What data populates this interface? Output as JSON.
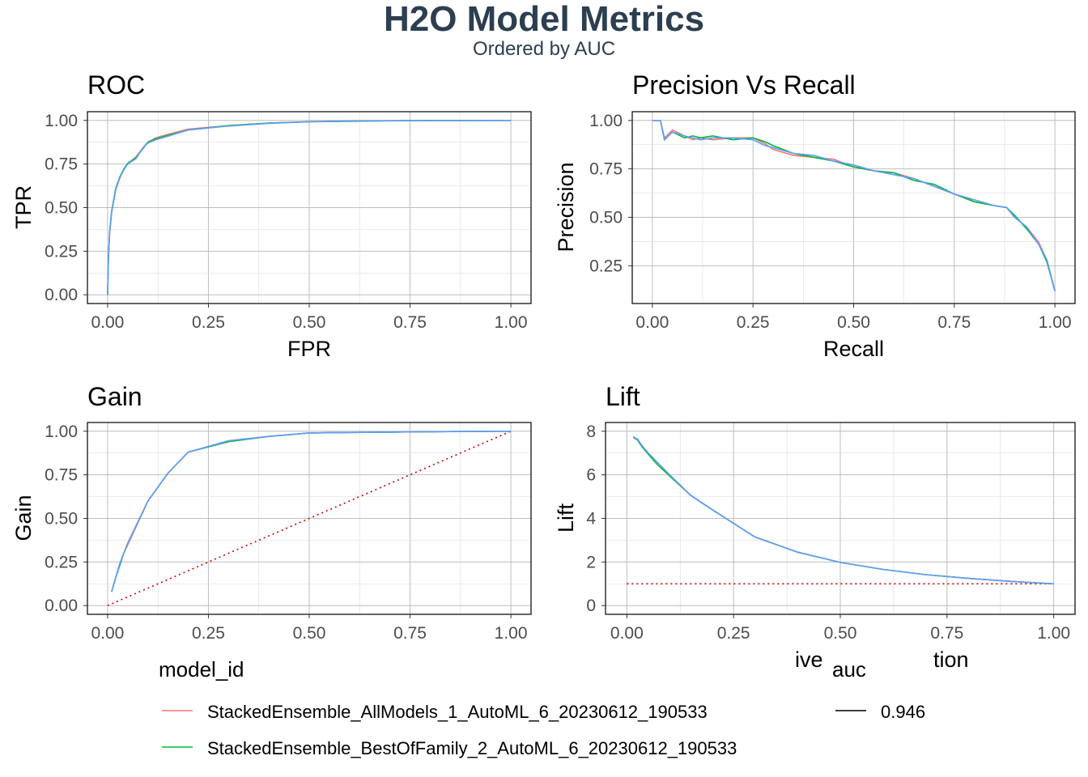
{
  "title": "H2O Model Metrics",
  "subtitle": "Ordered by AUC",
  "colors": {
    "series": [
      "#F8766D",
      "#00BA38",
      "#619CFF"
    ],
    "title": "#2C3E50",
    "reference": "#CC0000",
    "grid": "#BEBEBE",
    "panel_border": "#000000"
  },
  "legend": {
    "model_id_title": "model_id",
    "auc_title": "auc",
    "model_ids": [
      {
        "label": "StackedEnsemble_AllModels_1_AutoML_6_20230612_190533",
        "color": "#F8766D"
      },
      {
        "label": "StackedEnsemble_BestOfFamily_2_AutoML_6_20230612_190533",
        "color": "#00BA38"
      }
    ],
    "auc_values": [
      {
        "label": "0.946",
        "color": "#000000"
      }
    ],
    "placement": "bottom"
  },
  "chart_data": [
    {
      "type": "line",
      "title": "ROC",
      "xlabel": "FPR",
      "ylabel": "TPR",
      "xlim": [
        0,
        1
      ],
      "ylim": [
        0,
        1
      ],
      "xticks": [
        "0.00",
        "0.25",
        "0.50",
        "0.75",
        "1.00"
      ],
      "yticks": [
        "0.00",
        "0.25",
        "0.50",
        "0.75",
        "1.00"
      ],
      "grid": true,
      "series": [
        {
          "color": "#F8766D",
          "x": [
            0,
            0.002,
            0.005,
            0.01,
            0.02,
            0.03,
            0.04,
            0.05,
            0.07,
            0.09,
            0.1,
            0.12,
            0.15,
            0.2,
            0.3,
            0.4,
            0.5,
            0.6,
            0.75,
            1.0
          ],
          "y": [
            0,
            0.2,
            0.35,
            0.47,
            0.6,
            0.67,
            0.72,
            0.75,
            0.79,
            0.85,
            0.875,
            0.9,
            0.92,
            0.95,
            0.97,
            0.985,
            0.993,
            0.996,
            0.999,
            1.0
          ]
        },
        {
          "color": "#00BA38",
          "x": [
            0,
            0.002,
            0.005,
            0.01,
            0.02,
            0.03,
            0.04,
            0.05,
            0.07,
            0.09,
            0.1,
            0.12,
            0.15,
            0.2,
            0.3,
            0.4,
            0.5,
            0.6,
            0.75,
            1.0
          ],
          "y": [
            0,
            0.21,
            0.36,
            0.48,
            0.61,
            0.675,
            0.72,
            0.755,
            0.785,
            0.845,
            0.875,
            0.895,
            0.915,
            0.945,
            0.97,
            0.985,
            0.992,
            0.996,
            0.999,
            1.0
          ]
        },
        {
          "color": "#619CFF",
          "x": [
            0,
            0.002,
            0.005,
            0.01,
            0.02,
            0.03,
            0.04,
            0.05,
            0.07,
            0.09,
            0.1,
            0.12,
            0.15,
            0.2,
            0.3,
            0.4,
            0.5,
            0.6,
            0.75,
            1.0
          ],
          "y": [
            0,
            0.2,
            0.355,
            0.475,
            0.605,
            0.67,
            0.715,
            0.75,
            0.78,
            0.85,
            0.87,
            0.89,
            0.91,
            0.945,
            0.968,
            0.983,
            0.992,
            0.995,
            0.999,
            1.0
          ]
        }
      ]
    },
    {
      "type": "line",
      "title": "Precision Vs Recall",
      "xlabel": "Recall",
      "ylabel": "Precision",
      "xlim": [
        0,
        1
      ],
      "ylim": [
        0.1,
        1.0
      ],
      "xticks": [
        "0.00",
        "0.25",
        "0.50",
        "0.75",
        "1.00"
      ],
      "yticks": [
        "0.25",
        "0.50",
        "0.75",
        "1.00"
      ],
      "grid": true,
      "series": [
        {
          "color": "#F8766D",
          "x": [
            0,
            0.02,
            0.03,
            0.05,
            0.08,
            0.1,
            0.12,
            0.15,
            0.2,
            0.25,
            0.28,
            0.3,
            0.35,
            0.4,
            0.45,
            0.5,
            0.55,
            0.6,
            0.65,
            0.7,
            0.75,
            0.8,
            0.85,
            0.88,
            0.9,
            0.93,
            0.96,
            0.98,
            1.0
          ],
          "y": [
            1.0,
            1.0,
            0.91,
            0.95,
            0.92,
            0.9,
            0.91,
            0.9,
            0.91,
            0.91,
            0.88,
            0.85,
            0.82,
            0.81,
            0.8,
            0.76,
            0.74,
            0.73,
            0.7,
            0.66,
            0.62,
            0.58,
            0.56,
            0.55,
            0.5,
            0.45,
            0.37,
            0.28,
            0.12
          ]
        },
        {
          "color": "#00BA38",
          "x": [
            0,
            0.02,
            0.03,
            0.05,
            0.08,
            0.1,
            0.12,
            0.15,
            0.2,
            0.25,
            0.28,
            0.3,
            0.35,
            0.4,
            0.45,
            0.5,
            0.55,
            0.6,
            0.65,
            0.7,
            0.75,
            0.8,
            0.85,
            0.88,
            0.9,
            0.93,
            0.96,
            0.98,
            1.0
          ],
          "y": [
            1.0,
            1.0,
            0.9,
            0.94,
            0.91,
            0.92,
            0.91,
            0.92,
            0.9,
            0.91,
            0.89,
            0.87,
            0.83,
            0.81,
            0.79,
            0.76,
            0.74,
            0.73,
            0.69,
            0.67,
            0.62,
            0.58,
            0.56,
            0.55,
            0.51,
            0.44,
            0.36,
            0.27,
            0.12
          ]
        },
        {
          "color": "#619CFF",
          "x": [
            0,
            0.02,
            0.03,
            0.05,
            0.08,
            0.1,
            0.12,
            0.15,
            0.2,
            0.25,
            0.28,
            0.3,
            0.35,
            0.4,
            0.45,
            0.5,
            0.55,
            0.6,
            0.65,
            0.7,
            0.75,
            0.8,
            0.85,
            0.88,
            0.9,
            0.93,
            0.96,
            0.98,
            1.0
          ],
          "y": [
            1.0,
            1.0,
            0.9,
            0.94,
            0.92,
            0.91,
            0.9,
            0.91,
            0.91,
            0.9,
            0.87,
            0.86,
            0.83,
            0.82,
            0.79,
            0.77,
            0.74,
            0.72,
            0.7,
            0.66,
            0.62,
            0.59,
            0.56,
            0.55,
            0.5,
            0.45,
            0.36,
            0.28,
            0.12
          ]
        }
      ]
    },
    {
      "type": "line",
      "title": "Gain",
      "xlabel": "",
      "ylabel": "Gain",
      "xlim": [
        0,
        1
      ],
      "ylim": [
        0,
        1
      ],
      "xticks": [
        "0.00",
        "0.25",
        "0.50",
        "0.75",
        "1.00"
      ],
      "yticks": [
        "0.00",
        "0.25",
        "0.50",
        "0.75",
        "1.00"
      ],
      "grid": true,
      "reference_line": {
        "x": [
          0,
          1
        ],
        "y": [
          0,
          1
        ],
        "style": "dotted"
      },
      "series": [
        {
          "color": "#F8766D",
          "x": [
            0.01,
            0.02,
            0.03,
            0.04,
            0.05,
            0.1,
            0.15,
            0.2,
            0.3,
            0.4,
            0.5,
            0.6,
            0.7,
            0.8,
            0.9,
            1.0
          ],
          "y": [
            0.08,
            0.16,
            0.24,
            0.3,
            0.36,
            0.6,
            0.76,
            0.88,
            0.945,
            0.97,
            0.99,
            0.993,
            0.995,
            0.997,
            0.999,
            1.0
          ]
        },
        {
          "color": "#00BA38",
          "x": [
            0.01,
            0.02,
            0.03,
            0.04,
            0.05,
            0.1,
            0.15,
            0.2,
            0.3,
            0.4,
            0.5,
            0.6,
            0.7,
            0.8,
            0.9,
            1.0
          ],
          "y": [
            0.08,
            0.16,
            0.23,
            0.3,
            0.35,
            0.6,
            0.76,
            0.88,
            0.94,
            0.97,
            0.99,
            0.993,
            0.995,
            0.997,
            0.999,
            1.0
          ]
        },
        {
          "color": "#619CFF",
          "x": [
            0.01,
            0.02,
            0.03,
            0.04,
            0.05,
            0.1,
            0.15,
            0.2,
            0.3,
            0.4,
            0.5,
            0.6,
            0.7,
            0.8,
            0.9,
            1.0
          ],
          "y": [
            0.08,
            0.16,
            0.24,
            0.3,
            0.35,
            0.6,
            0.76,
            0.88,
            0.945,
            0.97,
            0.99,
            0.993,
            0.995,
            0.997,
            0.999,
            1.0
          ]
        }
      ]
    },
    {
      "type": "line",
      "title": "Lift",
      "xlabel": "ive",
      "xlabel_tail": "tion",
      "ylabel": "Lift",
      "xlim": [
        0,
        1
      ],
      "ylim": [
        0,
        8
      ],
      "xticks": [
        "0.00",
        "0.25",
        "0.50",
        "0.75",
        "1.00"
      ],
      "yticks": [
        "0",
        "2",
        "4",
        "6",
        "8"
      ],
      "grid": true,
      "reference_line": {
        "x": [
          0,
          1
        ],
        "y": [
          1,
          1
        ],
        "style": "dotted"
      },
      "series": [
        {
          "color": "#F8766D",
          "x": [
            0.015,
            0.025,
            0.035,
            0.05,
            0.07,
            0.1,
            0.15,
            0.2,
            0.3,
            0.4,
            0.5,
            0.6,
            0.7,
            0.8,
            0.9,
            1.0
          ],
          "y": [
            7.7,
            7.6,
            7.35,
            7.0,
            6.6,
            6.0,
            5.05,
            4.4,
            3.15,
            2.45,
            1.98,
            1.66,
            1.42,
            1.25,
            1.11,
            1.0
          ]
        },
        {
          "color": "#00BA38",
          "x": [
            0.015,
            0.025,
            0.035,
            0.05,
            0.07,
            0.1,
            0.15,
            0.2,
            0.3,
            0.4,
            0.5,
            0.6,
            0.7,
            0.8,
            0.9,
            1.0
          ],
          "y": [
            7.75,
            7.6,
            7.3,
            6.95,
            6.5,
            5.95,
            5.05,
            4.4,
            3.15,
            2.45,
            1.98,
            1.66,
            1.42,
            1.25,
            1.11,
            1.0
          ]
        },
        {
          "color": "#619CFF",
          "x": [
            0.015,
            0.025,
            0.035,
            0.05,
            0.07,
            0.1,
            0.15,
            0.2,
            0.3,
            0.4,
            0.5,
            0.6,
            0.7,
            0.8,
            0.9,
            1.0
          ],
          "y": [
            7.7,
            7.65,
            7.35,
            7.0,
            6.6,
            6.0,
            5.05,
            4.4,
            3.15,
            2.45,
            1.98,
            1.66,
            1.42,
            1.25,
            1.11,
            1.0
          ]
        }
      ]
    }
  ]
}
